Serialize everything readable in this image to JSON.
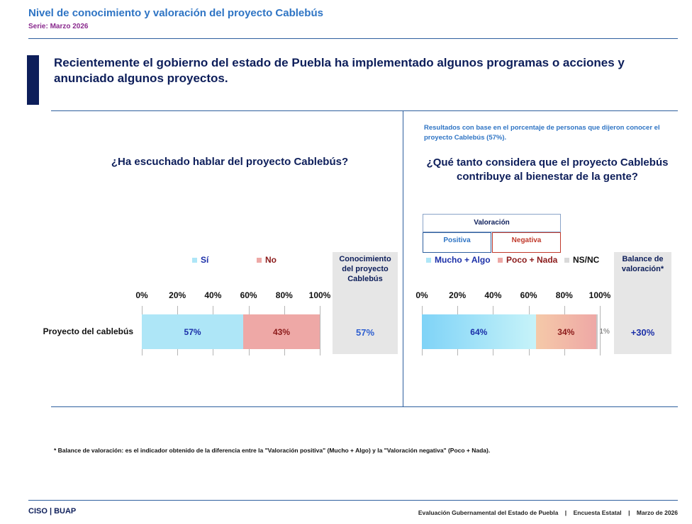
{
  "header": {
    "title": "Nivel de conocimiento y valoración del proyecto Cablebús",
    "series": "Serie: Marzo 2026"
  },
  "intro": "Recientemente el gobierno del estado de Puebla ha implementado algunos programas o acciones y anunciado algunos proyectos.",
  "left": {
    "question": "¿Ha escuchado hablar del proyecto Cablebús?",
    "legend": [
      {
        "label": "Sí",
        "color": "#aee6f7",
        "text_color": "#1b2fa8"
      },
      {
        "label": "No",
        "color": "#eea8a6",
        "text_color": "#8b1a1a"
      }
    ],
    "summary_header": "Conocimiento del proyecto Cablebús",
    "summary_value": "57%"
  },
  "right": {
    "base_note": "Resultados con base en el porcentaje de personas que dijeron conocer el proyecto Cablebús (57%).",
    "question": "¿Qué tanto considera que el proyecto Cablebús contribuye al bienestar de la gente?",
    "valoracion_label": "Valoración",
    "positiva_label": "Positiva",
    "negativa_label": "Negativa",
    "legend": [
      {
        "label": "Mucho + Algo",
        "color": "#aee6f7",
        "text_color": "#1b2fa8"
      },
      {
        "label": "Poco + Nada",
        "color": "#eea8a6",
        "text_color": "#8b1a1a"
      },
      {
        "label": "NS/NC",
        "color": "#d9d9d9",
        "text_color": "#111111"
      }
    ],
    "summary_header": "Balance de valoración*",
    "summary_value": "+30%"
  },
  "chart_data": [
    {
      "type": "bar",
      "orientation": "horizontal",
      "stacked": true,
      "categories": [
        "Proyecto del cablebús"
      ],
      "series": [
        {
          "name": "Sí",
          "values": [
            57
          ],
          "label": "57%"
        },
        {
          "name": "No",
          "values": [
            43
          ],
          "label": "43%"
        }
      ],
      "xlim": [
        0,
        100
      ],
      "ticks": [
        "0%",
        "20%",
        "40%",
        "60%",
        "80%",
        "100%"
      ]
    },
    {
      "type": "bar",
      "orientation": "horizontal",
      "stacked": true,
      "categories": [
        "Proyecto del cablebús"
      ],
      "series": [
        {
          "name": "Mucho + Algo",
          "values": [
            64
          ],
          "label": "64%"
        },
        {
          "name": "Poco + Nada",
          "values": [
            34
          ],
          "label": "34%"
        },
        {
          "name": "NS/NC",
          "values": [
            1
          ],
          "label": "1%"
        }
      ],
      "xlim": [
        0,
        100
      ],
      "ticks": [
        "0%",
        "20%",
        "40%",
        "60%",
        "80%",
        "100%"
      ]
    }
  ],
  "footnote": "* Balance de valoración: es el indicador obtenido de la diferencia entre la \"Valoración positiva\" (Mucho + Algo) y la \"Valoración negativa\" (Poco + Nada).",
  "footer": {
    "left": "CISO | BUAP",
    "right": "Evaluación Gubernamental del Estado de Puebla    |    Encuesta Estatal    |    Marzo de 2026"
  }
}
